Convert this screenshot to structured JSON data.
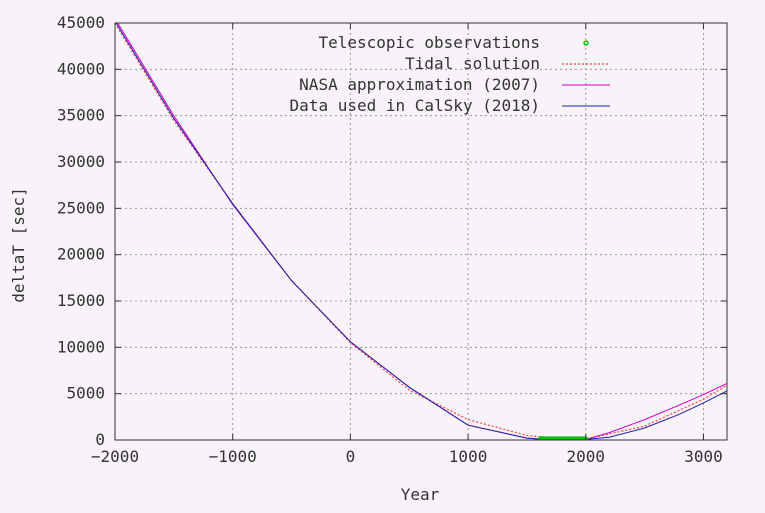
{
  "chart_data": {
    "type": "line",
    "xlabel": "Year",
    "ylabel": "deltaT [sec]",
    "xlim": [
      -2000,
      3200
    ],
    "ylim": [
      0,
      45000
    ],
    "x_ticks": [
      -2000,
      -1000,
      0,
      1000,
      2000,
      3000
    ],
    "y_ticks": [
      0,
      5000,
      10000,
      15000,
      20000,
      25000,
      30000,
      35000,
      40000,
      45000
    ],
    "x_tick_labels": [
      "−2000",
      "−1000",
      "0",
      "1000",
      "2000",
      "3000"
    ],
    "y_tick_labels": [
      "0",
      "5000",
      "10000",
      "15000",
      "20000",
      "25000",
      "30000",
      "35000",
      "40000",
      "45000"
    ],
    "grid": true,
    "legend_position": "top-right",
    "series": [
      {
        "name": "Telescopic observations",
        "style": "points",
        "color": "#00c000",
        "x": [
          1620,
          1640,
          1660,
          1680,
          1700,
          1720,
          1740,
          1760,
          1780,
          1800,
          1820,
          1840,
          1860,
          1880,
          1900,
          1920,
          1940,
          1960,
          1980,
          2000
        ],
        "y": [
          124,
          85,
          56,
          30,
          9,
          10,
          12,
          14,
          16,
          14,
          12,
          6,
          8,
          -5,
          -3,
          21,
          24,
          33,
          51,
          64
        ]
      },
      {
        "name": "Tidal solution",
        "style": "dotted",
        "color": "#ff4040",
        "x": [
          -2000,
          -1500,
          -1000,
          -500,
          0,
          500,
          1000,
          1500,
          1800,
          2000,
          2500,
          3000,
          3200
        ],
        "y": [
          45000,
          34500,
          25500,
          17200,
          10500,
          5400,
          2200,
          500,
          50,
          100,
          1500,
          4400,
          5900
        ]
      },
      {
        "name": "NASA approximation (2007)",
        "style": "solid",
        "color": "#d000d0",
        "x": [
          -2000,
          -1500,
          -1000,
          -500,
          0,
          500,
          1000,
          1500,
          1700,
          1900,
          2000,
          2200,
          2500,
          2800,
          3000,
          3200
        ],
        "y": [
          45500,
          35000,
          25400,
          17200,
          10600,
          5700,
          1600,
          200,
          10,
          0,
          60,
          800,
          2200,
          3800,
          4900,
          6100
        ]
      },
      {
        "name": "Data used in CalSky (2018)",
        "style": "solid",
        "color": "#2020a0",
        "x": [
          -2000,
          -1500,
          -1000,
          -500,
          0,
          500,
          1000,
          1500,
          1700,
          1900,
          2000,
          2200,
          2500,
          2800,
          3000,
          3200
        ],
        "y": [
          45200,
          34700,
          25500,
          17200,
          10600,
          5700,
          1600,
          200,
          10,
          0,
          60,
          300,
          1300,
          2800,
          4000,
          5300
        ]
      }
    ]
  }
}
